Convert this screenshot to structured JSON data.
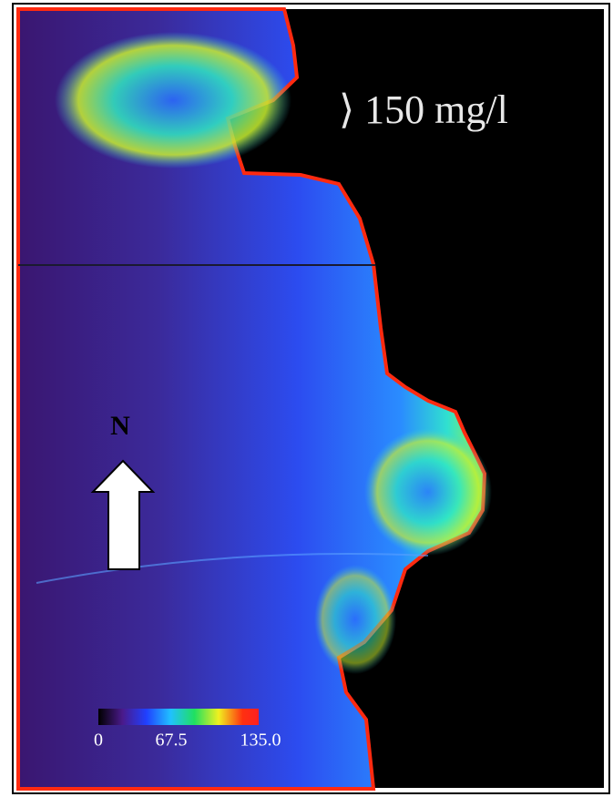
{
  "map": {
    "annotation": "⟩ 150 mg/l",
    "north_label": "N",
    "legend": {
      "labels": [
        "0",
        "67.5",
        "135.0"
      ]
    }
  }
}
